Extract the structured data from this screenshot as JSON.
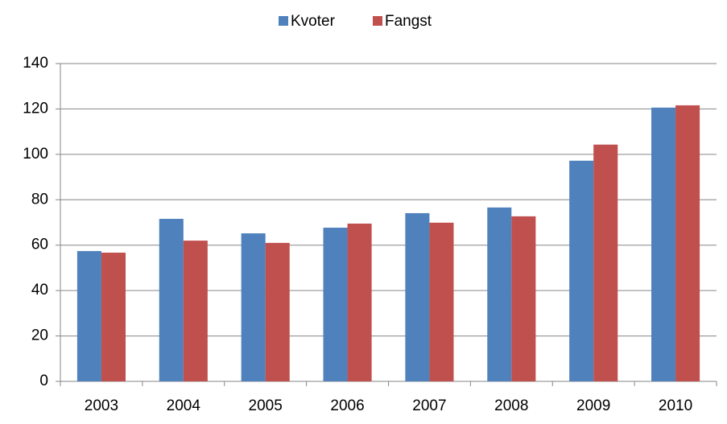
{
  "chart_data": {
    "type": "bar",
    "categories": [
      "2003",
      "2004",
      "2005",
      "2006",
      "2007",
      "2008",
      "2009",
      "2010"
    ],
    "series": [
      {
        "name": "Kvoter",
        "color": "#4f81bd",
        "values": [
          57.4,
          71.6,
          65.2,
          67.7,
          74.1,
          76.6,
          97.2,
          120.6
        ]
      },
      {
        "name": "Fangst",
        "color": "#c0504d",
        "values": [
          56.7,
          62,
          61,
          69.5,
          69.9,
          72.7,
          104.3,
          121.6
        ]
      }
    ],
    "ylim": [
      0,
      140
    ],
    "yticks": [
      0,
      20,
      40,
      60,
      80,
      100,
      120,
      140
    ],
    "grid": true,
    "legend": "top"
  }
}
